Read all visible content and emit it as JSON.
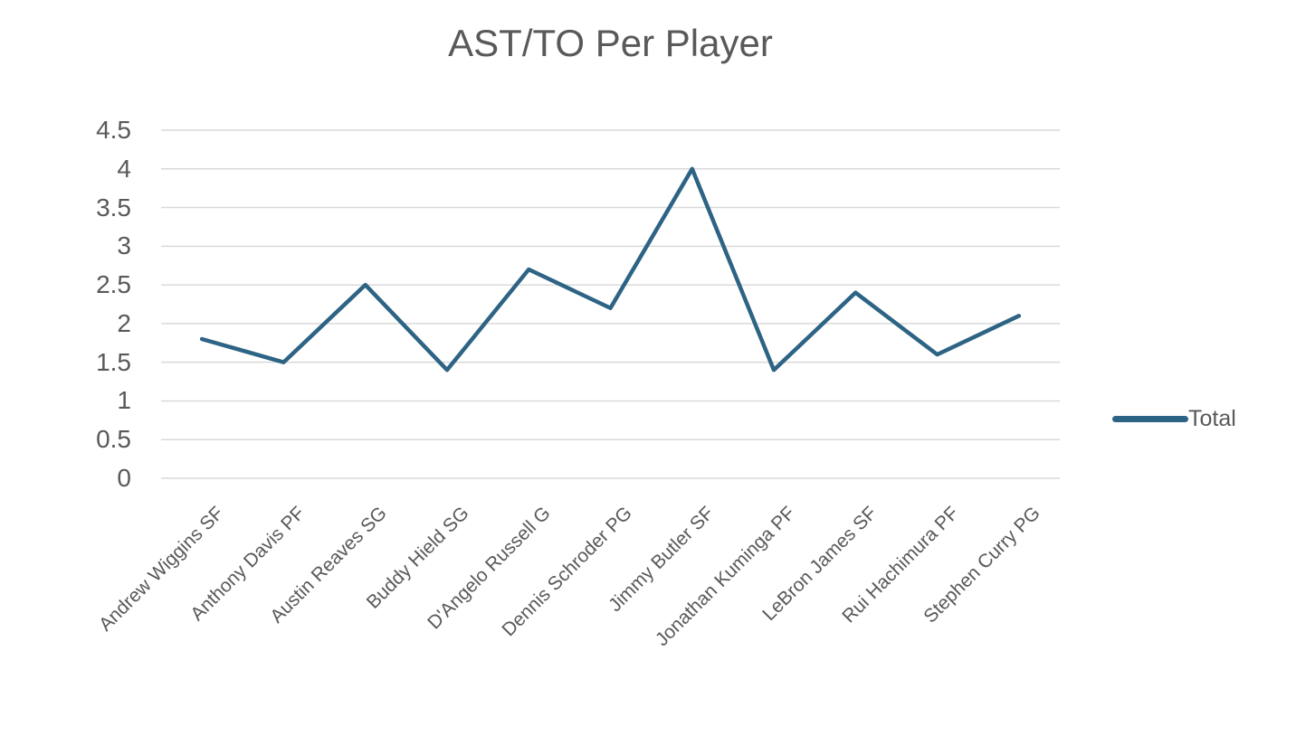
{
  "title": "AST/TO Per Player",
  "legend": {
    "label": "Total"
  },
  "colors": {
    "line": "#2d6384",
    "grid": "#d9d9d9",
    "text": "#595959"
  },
  "chart_data": {
    "type": "line",
    "title": "AST/TO Per Player",
    "categories": [
      "Andrew Wiggins SF",
      "Anthony Davis PF",
      "Austin Reaves SG",
      "Buddy Hield SG",
      "D'Angelo Russell G",
      "Dennis Schroder PG",
      "Jimmy Butler SF",
      "Jonathan Kuminga PF",
      "LeBron James SF",
      "Rui Hachimura PF",
      "Stephen Curry PG"
    ],
    "series": [
      {
        "name": "Total",
        "values": [
          1.8,
          1.5,
          2.5,
          1.4,
          2.7,
          2.2,
          4.0,
          1.4,
          2.4,
          1.6,
          2.1
        ]
      }
    ],
    "xlabel": "",
    "ylabel": "",
    "ylim": [
      0,
      4.5
    ],
    "y_ticks": [
      "0",
      "0.5",
      "1",
      "1.5",
      "2",
      "2.5",
      "3",
      "3.5",
      "4",
      "4.5"
    ],
    "grid": true,
    "legend_position": "right"
  }
}
